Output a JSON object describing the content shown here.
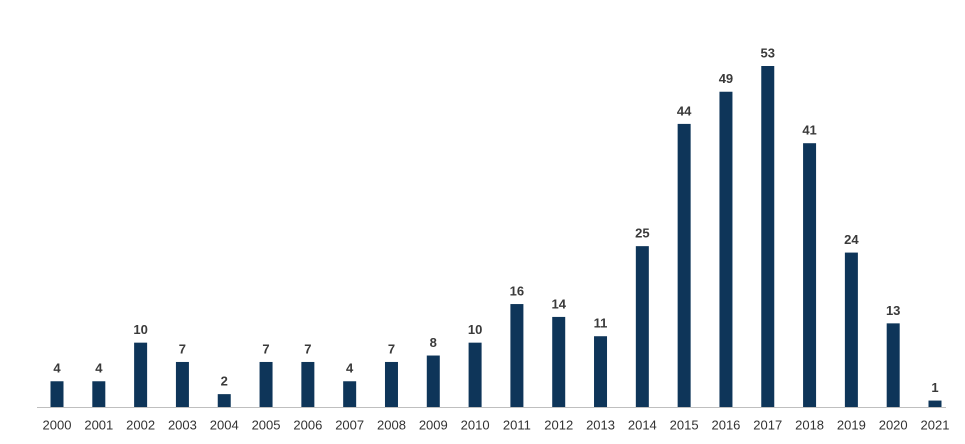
{
  "chart_data": {
    "type": "bar",
    "categories": [
      "2000",
      "2001",
      "2002",
      "2003",
      "2004",
      "2005",
      "2006",
      "2007",
      "2008",
      "2009",
      "2010",
      "2011",
      "2012",
      "2013",
      "2014",
      "2015",
      "2016",
      "2017",
      "2018",
      "2019",
      "2020",
      "2021"
    ],
    "values": [
      4,
      4,
      10,
      7,
      2,
      7,
      7,
      4,
      7,
      8,
      10,
      16,
      14,
      11,
      25,
      44,
      49,
      53,
      41,
      24,
      13,
      1
    ],
    "color": "#0e3559"
  }
}
